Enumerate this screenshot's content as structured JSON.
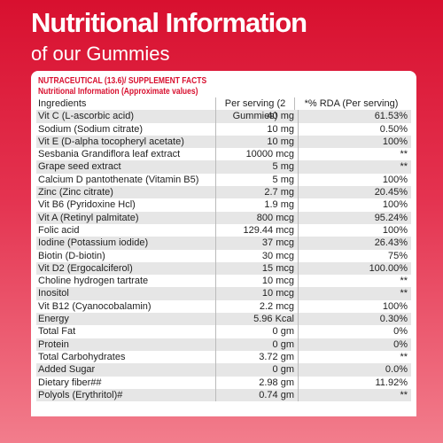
{
  "header": {
    "title": "Nutritional Information",
    "subtitle": "of our Gummies"
  },
  "card": {
    "heading": "NUTRACEUTICAL (13.6)/ SUPPLEMENT FACTS",
    "subheading": "Nutritional Information (Approximate values)"
  },
  "table": {
    "columns": [
      "Ingredients",
      "Per serving (2 Gummies)",
      "*% RDA (Per serving)"
    ],
    "rows": [
      [
        "Vit C (L-ascorbic acid)",
        "40 mg",
        "61.53%"
      ],
      [
        "Sodium (Sodium citrate)",
        "10 mg",
        "0.50%"
      ],
      [
        "Vit E (D-alpha tocopheryl acetate)",
        "10 mg",
        "100%"
      ],
      [
        "Sesbania Grandiflora leaf extract",
        "10000 mcg",
        "**"
      ],
      [
        "Grape seed extract",
        "5 mg",
        "**"
      ],
      [
        "Calcium D pantothenate (Vitamin B5)",
        "5 mg",
        "100%"
      ],
      [
        "Zinc (Zinc citrate)",
        "2.7 mg",
        "20.45%"
      ],
      [
        "Vit B6 (Pyridoxine Hcl)",
        "1.9 mg",
        "100%"
      ],
      [
        "Vit A (Retinyl palmitate)",
        "800 mcg",
        "95.24%"
      ],
      [
        "Folic acid",
        "129.44 mcg",
        "100%"
      ],
      [
        "Iodine (Potassium iodide)",
        "37 mcg",
        "26.43%"
      ],
      [
        "Biotin (D-biotin)",
        "30 mcg",
        "75%"
      ],
      [
        "Vit D2 (Ergocalciferol)",
        "15 mcg",
        "100.00%"
      ],
      [
        "Choline hydrogen tartrate",
        "10 mcg",
        "**"
      ],
      [
        "Inositol",
        "10 mcg",
        "**"
      ],
      [
        "Vit B12 (Cyanocobalamin)",
        "2.2 mcg",
        "100%"
      ],
      [
        "Energy",
        "5.96 Kcal",
        "0.30%"
      ],
      [
        "Total Fat",
        "0 gm",
        "0%"
      ],
      [
        "Protein",
        "0 gm",
        "0%"
      ],
      [
        "Total Carbohydrates",
        "3.72 gm",
        "**"
      ],
      [
        "Added Sugar",
        "0 gm",
        "0.0%"
      ],
      [
        "Dietary fiber##",
        "2.98 gm",
        "11.92%"
      ],
      [
        "Polyols (Erythritol)#",
        "0.74 gm",
        "**"
      ]
    ]
  }
}
